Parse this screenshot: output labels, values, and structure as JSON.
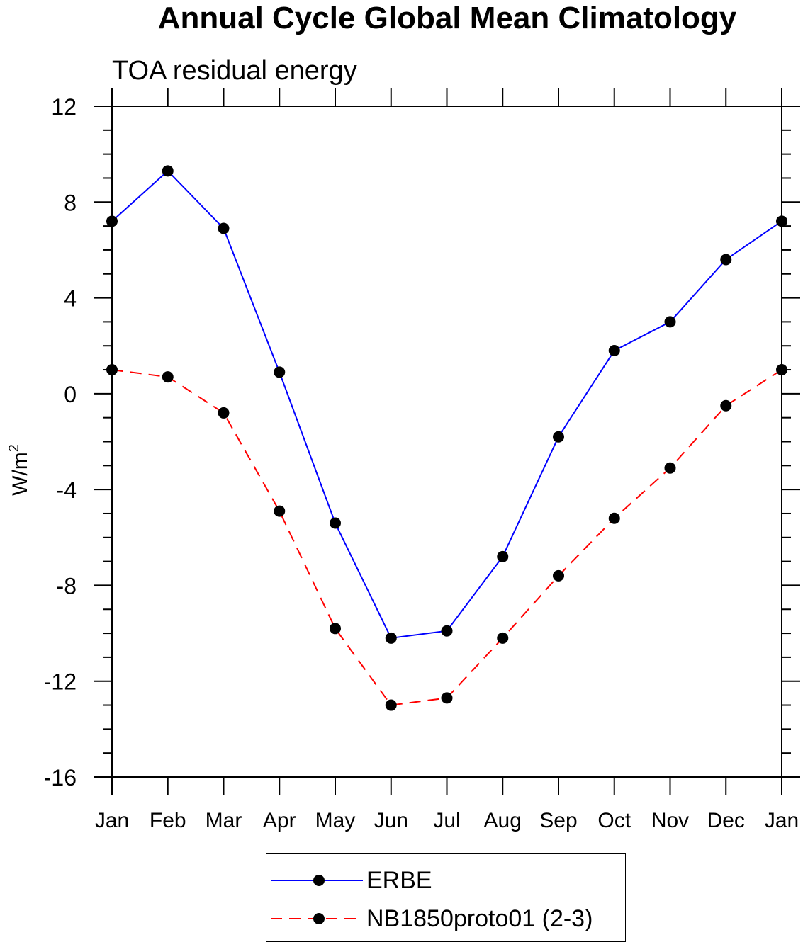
{
  "title": "Annual Cycle Global Mean Climatology",
  "subtitle": "TOA residual energy",
  "chart_data": {
    "type": "line",
    "title": "Annual Cycle Global Mean Climatology",
    "subtitle": "TOA residual energy",
    "xlabel": "",
    "ylabel_base": "W/m",
    "ylabel_superscript": "2",
    "categories": [
      "Jan",
      "Feb",
      "Mar",
      "Apr",
      "May",
      "Jun",
      "Jul",
      "Aug",
      "Sep",
      "Oct",
      "Nov",
      "Dec",
      "Jan"
    ],
    "ylim": [
      -16,
      12
    ],
    "yticks": [
      12,
      8,
      4,
      0,
      -4,
      -8,
      -12,
      -16
    ],
    "grid": false,
    "legend_position": "bottom",
    "series": [
      {
        "name": "ERBE",
        "color": "#0000ff",
        "dash": "solid",
        "marker": "filled-circle",
        "values": [
          7.2,
          9.3,
          6.9,
          0.9,
          -5.4,
          -10.2,
          -9.9,
          -6.8,
          -1.8,
          1.8,
          3.0,
          5.6,
          7.2
        ]
      },
      {
        "name": "NB1850proto01 (2-3)",
        "color": "#ff0000",
        "dash": "dashed",
        "marker": "filled-circle",
        "values": [
          1.0,
          0.7,
          -0.8,
          -4.9,
          -9.8,
          -13.0,
          -12.7,
          -10.2,
          -7.6,
          -5.2,
          -3.1,
          -0.5,
          1.0
        ]
      }
    ]
  }
}
